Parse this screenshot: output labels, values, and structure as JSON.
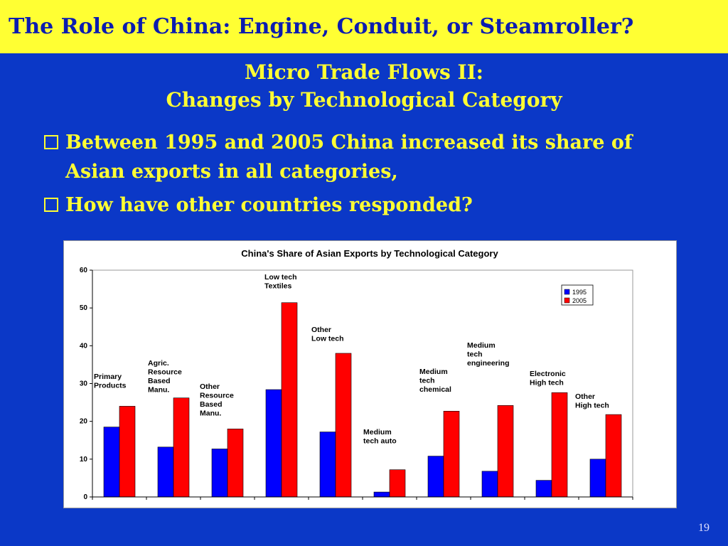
{
  "header": {
    "title": "The Role of China:  Engine, Conduit, or Steamroller?"
  },
  "subtitle": {
    "line1": "Micro Trade Flows II:",
    "line2": "Changes by Technological Category"
  },
  "bullets": [
    "Between 1995 and 2005 China increased its share of Asian exports in all categories,",
    "How have other countries responded?"
  ],
  "page_number": "19",
  "colors": {
    "title_bar": "#ffff33",
    "background": "#0b38c7",
    "series_1995": "#0000ff",
    "series_2005": "#ff0000"
  },
  "chart_data": {
    "type": "bar",
    "title": "China's Share of Asian Exports by Technological Category",
    "ylim": [
      0,
      60
    ],
    "yticks": [
      0,
      10,
      20,
      30,
      40,
      50,
      60
    ],
    "legend_position": "top-right",
    "categories": [
      [
        "Primary",
        "Products"
      ],
      [
        "Agric.",
        "Resource",
        "Based",
        "Manu."
      ],
      [
        "Other",
        "Resource",
        "Based",
        "Manu."
      ],
      [
        "Low tech",
        "Textiles"
      ],
      [
        "Other",
        "Low tech"
      ],
      [
        "Medium",
        "tech auto"
      ],
      [
        "Medium",
        "tech",
        "chemical"
      ],
      [
        "Medium",
        "tech",
        "engineering"
      ],
      [
        "Electronic",
        "High tech"
      ],
      [
        "Other",
        "High tech"
      ]
    ],
    "series": [
      {
        "name": "1995",
        "values": [
          18.5,
          13.2,
          12.7,
          28.4,
          17.2,
          1.3,
          10.8,
          6.8,
          4.4,
          10.0
        ]
      },
      {
        "name": "2005",
        "values": [
          24.0,
          26.2,
          18.0,
          51.4,
          38.0,
          7.2,
          22.7,
          24.2,
          27.6,
          21.8
        ]
      }
    ]
  }
}
